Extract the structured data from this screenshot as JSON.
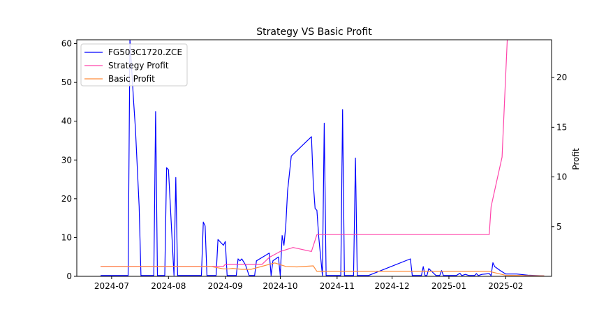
{
  "chart_data": {
    "type": "line",
    "title": "Strategy VS Basic Profit",
    "xlabel": "",
    "ylabel_left": "",
    "ylabel_right": "Profit",
    "x_range": [
      "2024-06-12",
      "2025-02-26"
    ],
    "y_left_range": [
      0,
      61
    ],
    "y_right_range": [
      0,
      23.8
    ],
    "x_ticks": [
      "2024-07",
      "2024-08",
      "2024-09",
      "2024-10",
      "2024-11",
      "2024-12",
      "2025-01",
      "2025-02"
    ],
    "x_tick_dates": [
      "2024-07-01",
      "2024-08-01",
      "2024-09-01",
      "2024-10-01",
      "2024-11-01",
      "2024-12-01",
      "2025-01-01",
      "2025-02-01"
    ],
    "y_left_ticks": [
      0,
      10,
      20,
      30,
      40,
      50,
      60
    ],
    "y_right_ticks": [
      5,
      10,
      15,
      20
    ],
    "grid": false,
    "legend_position": "top-left",
    "series": [
      {
        "name": "FG503C1720.ZCE",
        "axis": "left",
        "color": "#0000ff",
        "points": [
          [
            "2024-06-25",
            0.2
          ],
          [
            "2024-07-10",
            0.2
          ],
          [
            "2024-07-11",
            61
          ],
          [
            "2024-07-13",
            45
          ],
          [
            "2024-07-14",
            38
          ],
          [
            "2024-07-16",
            18
          ],
          [
            "2024-07-17",
            0.2
          ],
          [
            "2024-07-24",
            0.2
          ],
          [
            "2024-07-25",
            42.5
          ],
          [
            "2024-07-26",
            0.2
          ],
          [
            "2024-07-30",
            0.2
          ],
          [
            "2024-07-31",
            28
          ],
          [
            "2024-08-01",
            27.5
          ],
          [
            "2024-08-04",
            0.2
          ],
          [
            "2024-08-05",
            25.5
          ],
          [
            "2024-08-06",
            0.2
          ],
          [
            "2024-08-12",
            0.2
          ],
          [
            "2024-08-19",
            0.2
          ],
          [
            "2024-08-20",
            14
          ],
          [
            "2024-08-21",
            13
          ],
          [
            "2024-08-22",
            0.2
          ],
          [
            "2024-08-27",
            0.2
          ],
          [
            "2024-08-28",
            9.5
          ],
          [
            "2024-08-31",
            8
          ],
          [
            "2024-09-01",
            9
          ],
          [
            "2024-09-02",
            0.2
          ],
          [
            "2024-09-07",
            0.2
          ],
          [
            "2024-09-08",
            4.5
          ],
          [
            "2024-09-09",
            4
          ],
          [
            "2024-09-10",
            4.5
          ],
          [
            "2024-09-12",
            3
          ],
          [
            "2024-09-14",
            0.2
          ],
          [
            "2024-09-17",
            0.2
          ],
          [
            "2024-09-18",
            4
          ],
          [
            "2024-09-25",
            6
          ],
          [
            "2024-09-26",
            0.2
          ],
          [
            "2024-09-27",
            4
          ],
          [
            "2024-09-30",
            5
          ],
          [
            "2024-10-01",
            0.2
          ],
          [
            "2024-10-02",
            10.5
          ],
          [
            "2024-10-03",
            8
          ],
          [
            "2024-10-04",
            13
          ],
          [
            "2024-10-05",
            22
          ],
          [
            "2024-10-07",
            31
          ],
          [
            "2024-10-18",
            36
          ],
          [
            "2024-10-19",
            24
          ],
          [
            "2024-10-20",
            17.5
          ],
          [
            "2024-10-21",
            17
          ],
          [
            "2024-10-22",
            10
          ],
          [
            "2024-10-24",
            0.2
          ],
          [
            "2024-10-25",
            39.5
          ],
          [
            "2024-10-26",
            0.2
          ],
          [
            "2024-11-03",
            0.2
          ],
          [
            "2024-11-04",
            43
          ],
          [
            "2024-11-05",
            0.2
          ],
          [
            "2024-11-10",
            0.2
          ],
          [
            "2024-11-11",
            30.5
          ],
          [
            "2024-11-12",
            0.2
          ],
          [
            "2024-11-18",
            0.2
          ],
          [
            "2024-12-11",
            4.5
          ],
          [
            "2024-12-12",
            0.2
          ],
          [
            "2024-12-17",
            0.2
          ],
          [
            "2024-12-18",
            2.5
          ],
          [
            "2024-12-19",
            0.2
          ],
          [
            "2024-12-20",
            0.2
          ],
          [
            "2024-12-21",
            2
          ],
          [
            "2024-12-25",
            0.2
          ],
          [
            "2024-12-27",
            0.2
          ],
          [
            "2024-12-28",
            1.5
          ],
          [
            "2024-12-29",
            0.2
          ],
          [
            "2025-01-05",
            0.2
          ],
          [
            "2025-01-07",
            0.8
          ],
          [
            "2025-01-08",
            0.2
          ],
          [
            "2025-01-10",
            0.5
          ],
          [
            "2025-01-12",
            0.2
          ],
          [
            "2025-01-15",
            0.2
          ],
          [
            "2025-01-16",
            0.7
          ],
          [
            "2025-01-17",
            0.2
          ],
          [
            "2025-01-19",
            0.5
          ],
          [
            "2025-01-23",
            0.7
          ],
          [
            "2025-01-24",
            0.2
          ],
          [
            "2025-01-25",
            3.5
          ],
          [
            "2025-01-26",
            2.5
          ],
          [
            "2025-01-29",
            1.5
          ],
          [
            "2025-02-01",
            0.6
          ],
          [
            "2025-02-07",
            0.6
          ],
          [
            "2025-02-13",
            0.3
          ],
          [
            "2025-02-22",
            0.1
          ]
        ]
      },
      {
        "name": "Strategy Profit",
        "axis": "right",
        "color": "#ff44aa",
        "points": [
          [
            "2024-06-25",
            1.0
          ],
          [
            "2024-08-31",
            1.0
          ],
          [
            "2024-09-01",
            1.2
          ],
          [
            "2024-09-21",
            1.2
          ],
          [
            "2024-09-25",
            1.9
          ],
          [
            "2024-10-01",
            2.5
          ],
          [
            "2024-10-08",
            2.9
          ],
          [
            "2024-10-18",
            2.5
          ],
          [
            "2024-10-21",
            4.2
          ],
          [
            "2025-01-23",
            4.2
          ],
          [
            "2025-01-24",
            7.0
          ],
          [
            "2025-01-27",
            9.5
          ],
          [
            "2025-01-30",
            12.0
          ],
          [
            "2025-02-02",
            24.5
          ]
        ]
      },
      {
        "name": "Basic Profit",
        "axis": "right",
        "color": "#ff8c3a",
        "points": [
          [
            "2024-06-25",
            1.0
          ],
          [
            "2024-08-24",
            1.0
          ],
          [
            "2024-08-31",
            0.75
          ],
          [
            "2024-09-03",
            0.75
          ],
          [
            "2024-09-05",
            0.8
          ],
          [
            "2024-09-10",
            0.7
          ],
          [
            "2024-09-15",
            0.7
          ],
          [
            "2024-09-22",
            1.05
          ],
          [
            "2024-09-28",
            1.35
          ],
          [
            "2024-10-04",
            1.0
          ],
          [
            "2024-10-10",
            0.95
          ],
          [
            "2024-10-19",
            1.05
          ],
          [
            "2024-10-21",
            0.5
          ],
          [
            "2025-01-23",
            0.5
          ],
          [
            "2025-02-01",
            0.1
          ],
          [
            "2025-02-22",
            0.05
          ]
        ]
      }
    ]
  }
}
